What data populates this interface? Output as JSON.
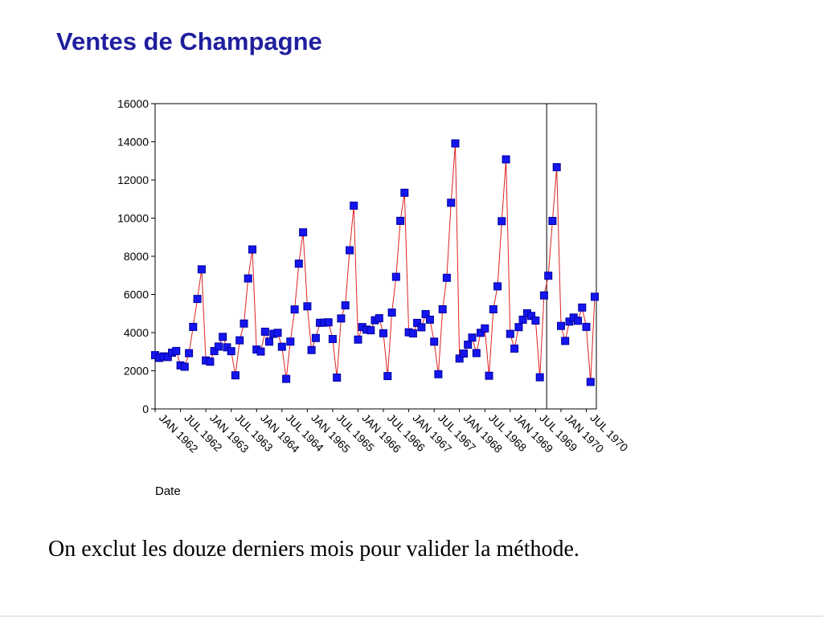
{
  "slide": {
    "title": "Ventes de Champagne",
    "caption": "On exclut les douze derniers mois pour valider la méthode."
  },
  "chart_data": {
    "type": "line",
    "xlabel": "Date",
    "ylabel": "",
    "ylim": [
      0,
      16000
    ],
    "yticks": [
      0,
      2000,
      4000,
      6000,
      8000,
      10000,
      12000,
      14000,
      16000
    ],
    "start": "1962-01",
    "holdout_start": "1969-10",
    "x_tick_labels": [
      "JAN 1962",
      "JUL 1962",
      "JAN 1963",
      "JUL 1963",
      "JAN 1964",
      "JUL 1964",
      "JAN 1965",
      "JUL 1965",
      "JAN 1966",
      "JUL 1966",
      "JAN 1967",
      "JUL 1967",
      "JAN 1968",
      "JUL 1968",
      "JAN 1969",
      "JUL 1969",
      "JAN 1970",
      "JUL 1970"
    ],
    "colors": {
      "line": "#dd2222",
      "marker": "#1515ee",
      "title": "#1f1f9e"
    },
    "grid": false,
    "legend": "none",
    "series": [
      {
        "values": [
          2815,
          2672,
          2755,
          2721,
          2946,
          3036,
          2282,
          2212,
          2922,
          4301,
          5764,
          7312,
          2541,
          2475,
          3031,
          3266,
          3776,
          3230,
          3028,
          1759,
          3595,
          4474,
          6838,
          8357,
          3113,
          3006,
          4047,
          3523,
          3937,
          3986,
          3260,
          1573,
          3528,
          5211,
          7614,
          9254,
          5375,
          3088,
          3718,
          4514,
          4520,
          4539,
          3663,
          1643,
          4739,
          5428,
          8314,
          10651,
          3633,
          4292,
          4154,
          4121,
          4647,
          4753,
          3965,
          1723,
          5048,
          6922,
          9858,
          11331,
          4016,
          3957,
          4510,
          4276,
          4968,
          4677,
          3523,
          1821,
          5222,
          6872,
          10803,
          13916,
          2639,
          2899,
          3370,
          3740,
          2927,
          3986,
          4217,
          1738,
          5221,
          6424,
          9842,
          13076,
          3934,
          3162,
          4286,
          4676,
          5010,
          4874,
          4633,
          1659,
          5951,
          6981,
          9851,
          12670,
          4348,
          3564,
          4577,
          4788,
          4618,
          5312,
          4298,
          1413,
          5877
        ]
      }
    ]
  }
}
